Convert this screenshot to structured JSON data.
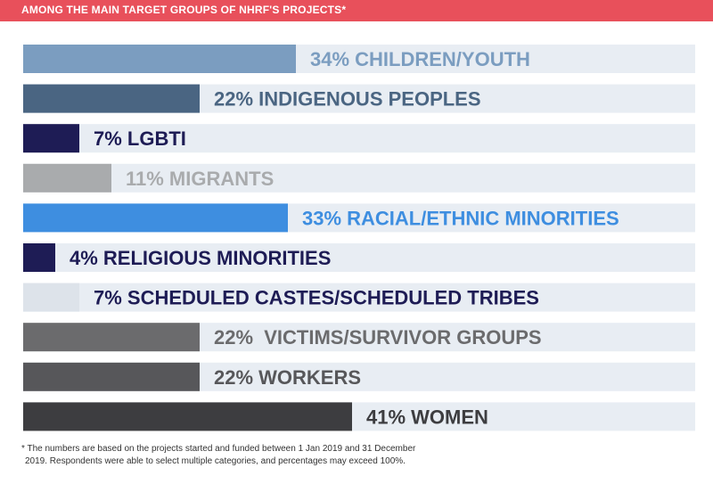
{
  "header": {
    "title": "AMONG THE MAIN TARGET GROUPS OF NHRF'S PROJECTS*"
  },
  "chart_data": {
    "type": "bar",
    "orientation": "horizontal",
    "title": "AMONG THE MAIN TARGET GROUPS OF NHRF'S PROJECTS*",
    "xlim": [
      0,
      100
    ],
    "grid": false,
    "legend": "none",
    "track_color": "#e8edf3",
    "categories": [
      "34% CHILDREN/YOUTH",
      "22% INDIGENOUS PEOPLES",
      "7% LGBTI",
      "11% MIGRANTS",
      "33% RACIAL/ETHNIC MINORITIES",
      "4% RELIGIOUS MINORITIES",
      "7% SCHEDULED CASTES/SCHEDULED TRIBES",
      "22%  VICTIMS/SURVIVOR GROUPS",
      "22% WORKERS",
      "41% WOMEN"
    ],
    "values": [
      34,
      22,
      7,
      11,
      33,
      4,
      7,
      22,
      22,
      41
    ],
    "bar_colors": [
      "#7b9dc0",
      "#4a6582",
      "#1e1c55",
      "#a9abad",
      "#3e8ee0",
      "#1e1c55",
      "#dde3ea",
      "#6b6b6d",
      "#57575a",
      "#3d3d40"
    ],
    "label_colors": [
      "#7b9dc0",
      "#4a6582",
      "#1e1c55",
      "#a9abad",
      "#3e8ee0",
      "#1e1c55",
      "#1e1c55",
      "#6b6b6d",
      "#57575a",
      "#3d3d40"
    ]
  },
  "footnote": {
    "line1": "* The numbers are based on the projects started and funded between 1 Jan 2019 and 31 December",
    "line2": "2019. Respondents were able to select multiple categories, and percentages may exceed 100%."
  }
}
